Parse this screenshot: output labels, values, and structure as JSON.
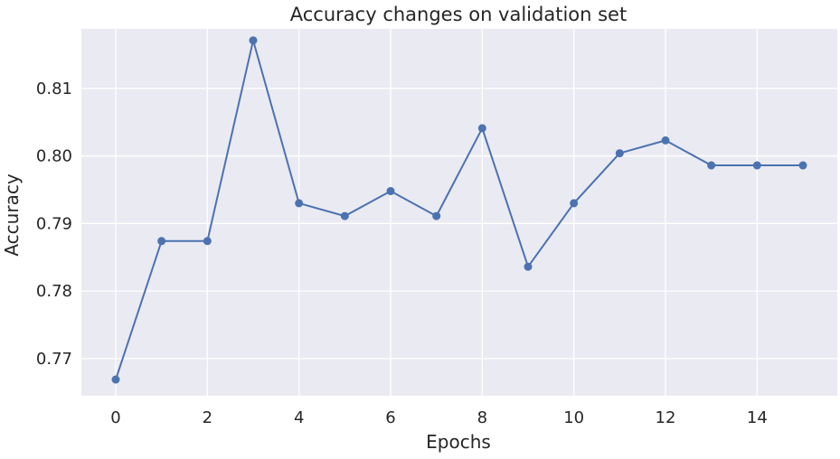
{
  "chart_data": {
    "type": "line",
    "title": "Accuracy changes on validation set",
    "xlabel": "Epochs",
    "ylabel": "Accuracy",
    "x": [
      0,
      1,
      2,
      3,
      4,
      5,
      6,
      7,
      8,
      9,
      10,
      11,
      12,
      13,
      14,
      15
    ],
    "series": [
      {
        "values": [
          0.7669,
          0.7874,
          0.7874,
          0.8171,
          0.793,
          0.7911,
          0.7948,
          0.7911,
          0.8041,
          0.7836,
          0.793,
          0.8004,
          0.8023,
          0.7986,
          0.7986,
          0.7986
        ]
      }
    ],
    "xticks": [
      0,
      2,
      4,
      6,
      8,
      10,
      12,
      14
    ],
    "xtick_labels": [
      "0",
      "2",
      "4",
      "6",
      "8",
      "10",
      "12",
      "14"
    ],
    "yticks": [
      0.77,
      0.78,
      0.79,
      0.8,
      0.81
    ],
    "ytick_labels": [
      "0.77",
      "0.78",
      "0.79",
      "0.80",
      "0.81"
    ],
    "xlim": [
      -0.75,
      15.75
    ],
    "ylim": [
      0.7645,
      0.8188
    ],
    "grid": true,
    "colors": {
      "line": "#4c72b0",
      "plot_background": "#eaeaf2",
      "grid": "#ffffff",
      "text": "#262626"
    }
  }
}
